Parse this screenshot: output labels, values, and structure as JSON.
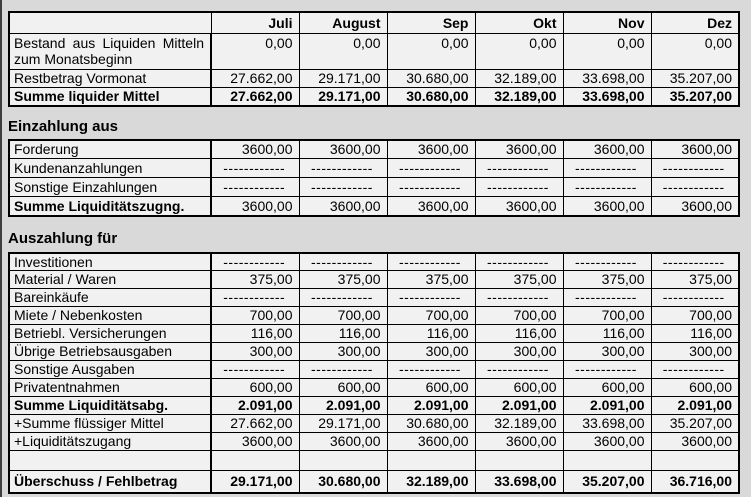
{
  "page": {
    "background": "#d9d9d9",
    "cell_background": "#f1f1f1",
    "border_color": "#000000",
    "text_color": "#000000"
  },
  "columns": [
    "Juli",
    "August",
    "Sep",
    "Okt",
    "Nov",
    "Dez"
  ],
  "dash_placeholder": "------------",
  "sections": [
    {
      "name": "bestand",
      "heading": "",
      "show_column_headers": true,
      "rows": [
        {
          "label": "Bestand aus Liquiden Mitteln zum Monatsbeginn",
          "values": [
            "0,00",
            "0,00",
            "0,00",
            "0,00",
            "0,00",
            "0,00"
          ],
          "label_bold": false,
          "values_bold": false,
          "justify": true,
          "valign_top": true,
          "height": 36
        },
        {
          "label": "Restbetrag Vormonat",
          "values": [
            "27.662,00",
            "29.171,00",
            "30.680,00",
            "32.189,00",
            "33.698,00",
            "35.207,00"
          ],
          "label_bold": false,
          "values_bold": false,
          "height": 18
        },
        {
          "label": "Summe liquider Mittel",
          "values": [
            "27.662,00",
            "29.171,00",
            "30.680,00",
            "32.189,00",
            "33.698,00",
            "35.207,00"
          ],
          "label_bold": true,
          "values_bold": true,
          "height": 18
        }
      ]
    },
    {
      "name": "einzahlung",
      "heading": "Einzahlung aus",
      "show_column_headers": false,
      "rows": [
        {
          "label": "Forderung",
          "values": [
            "3600,00",
            "3600,00",
            "3600,00",
            "3600,00",
            "3600,00",
            "3600,00"
          ],
          "label_bold": false,
          "values_bold": false,
          "height": 19
        },
        {
          "label": "Kundenanzahlungen",
          "values": [
            "------------",
            "------------",
            "------------",
            "------------",
            "------------",
            "------------"
          ],
          "label_bold": false,
          "values_bold": false,
          "height": 19
        },
        {
          "label": "Sonstige Einzahlungen",
          "values": [
            "------------",
            "------------",
            "------------",
            "------------",
            "------------",
            "------------"
          ],
          "label_bold": false,
          "values_bold": false,
          "height": 19
        },
        {
          "label": "Summe Liquiditätszugng.",
          "values": [
            "3600,00",
            "3600,00",
            "3600,00",
            "3600,00",
            "3600,00",
            "3600,00"
          ],
          "label_bold": true,
          "values_bold": false,
          "height": 19
        }
      ]
    },
    {
      "name": "auszahlung",
      "heading": "Auszahlung für",
      "show_column_headers": false,
      "rows": [
        {
          "label": "Investitionen",
          "values": [
            "------------",
            "------------",
            "------------",
            "------------",
            "------------",
            "------------"
          ],
          "label_bold": false,
          "values_bold": false,
          "height": 18
        },
        {
          "label": "Material / Waren",
          "values": [
            "375,00",
            "375,00",
            "375,00",
            "375,00",
            "375,00",
            "375,00"
          ],
          "label_bold": false,
          "values_bold": false,
          "height": 18
        },
        {
          "label": "Bareinkäufe",
          "values": [
            "------------",
            "------------",
            "------------",
            "------------",
            "------------",
            "------------"
          ],
          "label_bold": false,
          "values_bold": false,
          "height": 18
        },
        {
          "label": "Miete / Nebenkosten",
          "values": [
            "700,00",
            "700,00",
            "700,00",
            "700,00",
            "700,00",
            "700,00"
          ],
          "label_bold": false,
          "values_bold": false,
          "height": 18
        },
        {
          "label": "Betriebl. Versicherungen",
          "values": [
            "116,00",
            "116,00",
            "116,00",
            "116,00",
            "116,00",
            "116,00"
          ],
          "label_bold": false,
          "values_bold": false,
          "height": 18
        },
        {
          "label": "Übrige Betriebsausgaben",
          "values": [
            "300,00",
            "300,00",
            "300,00",
            "300,00",
            "300,00",
            "300,00"
          ],
          "label_bold": false,
          "values_bold": false,
          "height": 18
        },
        {
          "label": "Sonstige Ausgaben",
          "values": [
            "------------",
            "------------",
            "------------",
            "------------",
            "------------",
            "------------"
          ],
          "label_bold": false,
          "values_bold": false,
          "height": 18
        },
        {
          "label": "Privatentnahmen",
          "values": [
            "600,00",
            "600,00",
            "600,00",
            "600,00",
            "600,00",
            "600,00"
          ],
          "label_bold": false,
          "values_bold": false,
          "height": 18
        },
        {
          "label": "Summe Liquiditätsabg.",
          "values": [
            "2.091,00",
            "2.091,00",
            "2.091,00",
            "2.091,00",
            "2.091,00",
            "2.091,00"
          ],
          "label_bold": true,
          "values_bold": true,
          "height": 18
        },
        {
          "label": "+Summe flüssiger Mittel",
          "values": [
            "27.662,00",
            "29.171,00",
            "30.680,00",
            "32.189,00",
            "33.698,00",
            "35.207,00"
          ],
          "label_bold": false,
          "values_bold": false,
          "height": 18
        },
        {
          "label": "+Liquiditätszugang",
          "values": [
            "3600,00",
            "3600,00",
            "3600,00",
            "3600,00",
            "3600,00",
            "3600,00"
          ],
          "label_bold": false,
          "values_bold": false,
          "height": 18
        },
        {
          "label": "",
          "values": [
            "",
            "",
            "",
            "",
            "",
            ""
          ],
          "label_bold": false,
          "values_bold": false,
          "empty": true,
          "height": 20
        },
        {
          "label": "Überschuss / Fehlbetrag",
          "values": [
            "29.171,00",
            "30.680,00",
            "32.189,00",
            "33.698,00",
            "35.207,00",
            "36.716,00"
          ],
          "label_bold": true,
          "values_bold": true,
          "height": 22
        }
      ]
    }
  ]
}
